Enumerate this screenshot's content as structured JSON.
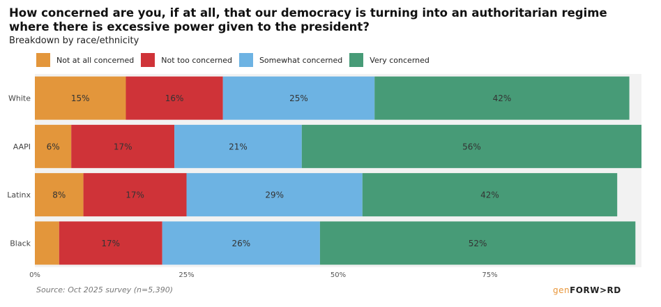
{
  "title": "How concerned are you, if at all, that our democracy is turning into an authoritarian regime where there is excessive power given to the president?",
  "subtitle": "Breakdown by race/ethnicity",
  "source": "Source: Oct 2025 survey (n=5,390)",
  "logo": {
    "part1": "gen",
    "part2": "FORW>RD"
  },
  "colors": {
    "Not at all concerned": "#E3963B",
    "Not too concerned": "#CF3338",
    "Somewhat concerned": "#6DB3E3",
    "Very concerned": "#479B77"
  },
  "chart_data": {
    "type": "bar",
    "orientation": "horizontal",
    "stacked": true,
    "categories": [
      "White",
      "AAPI",
      "Latinx",
      "Black"
    ],
    "series": [
      {
        "name": "Not at all concerned",
        "values": [
          15,
          6,
          8,
          4
        ],
        "labels": [
          "15%",
          "6%",
          "8%",
          ""
        ]
      },
      {
        "name": "Not too concerned",
        "values": [
          16,
          17,
          17,
          17
        ],
        "labels": [
          "16%",
          "17%",
          "17%",
          "17%"
        ]
      },
      {
        "name": "Somewhat concerned",
        "values": [
          25,
          21,
          29,
          26
        ],
        "labels": [
          "25%",
          "21%",
          "29%",
          "26%"
        ]
      },
      {
        "name": "Very concerned",
        "values": [
          42,
          56,
          42,
          52
        ],
        "labels": [
          "42%",
          "56%",
          "42%",
          "52%"
        ]
      }
    ],
    "xlim": [
      0,
      100
    ],
    "xticks": [
      0,
      25,
      50,
      75
    ],
    "xtick_labels": [
      "0%",
      "25%",
      "50%",
      "75%"
    ],
    "legend_position": "top",
    "grid": false
  }
}
